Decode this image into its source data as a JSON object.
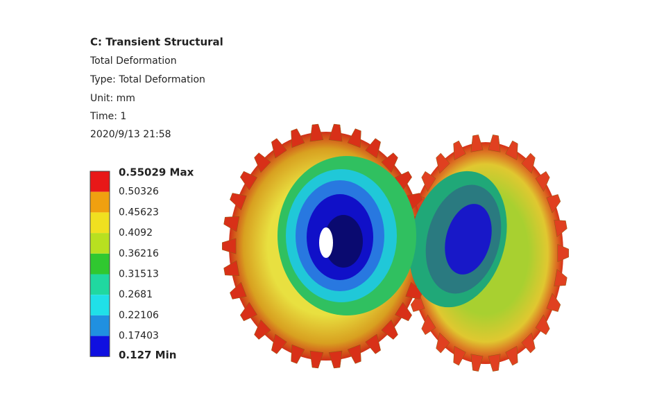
{
  "header": {
    "title": "C: Transient Structural",
    "result": "Total Deformation",
    "type": "Type: Total Deformation",
    "unit": "Unit: mm",
    "time": "Time: 1",
    "date": "2020/9/13 21:58"
  },
  "legend": {
    "labels": [
      "0.55029 Max",
      "0.50326",
      "0.45623",
      "0.4092",
      "0.36216",
      "0.31513",
      "0.2681",
      "0.22106",
      "0.17403",
      "0.127 Min"
    ],
    "colors": [
      "#e81818",
      "#f0a010",
      "#f0e020",
      "#b8e020",
      "#30c830",
      "#20d8a0",
      "#20e0e8",
      "#2090e0",
      "#1010e0"
    ]
  }
}
